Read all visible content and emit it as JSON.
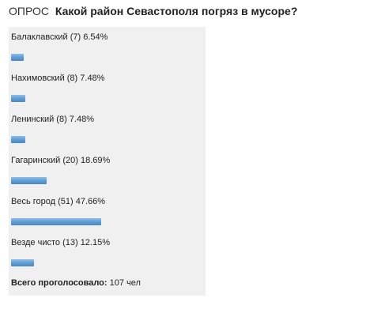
{
  "header": {
    "tag": "ОПРОС",
    "question": "Какой район Севастополя погряз в мусоре?"
  },
  "poll": {
    "accent_color": "#5c9bd2",
    "options": [
      {
        "label": "Балаклавский (7) 6.54%",
        "votes": 7,
        "percent": 6.54
      },
      {
        "label": "Нахимовский (8) 7.48%",
        "votes": 8,
        "percent": 7.48
      },
      {
        "label": "Ленинский (8) 7.48%",
        "votes": 8,
        "percent": 7.48
      },
      {
        "label": "Гагаринский (20) 18.69%",
        "votes": 20,
        "percent": 18.69
      },
      {
        "label": "Весь город (51) 47.66%",
        "votes": 51,
        "percent": 47.66
      },
      {
        "label": "Везде чисто (13) 12.15%",
        "votes": 13,
        "percent": 12.15
      }
    ],
    "total_label": "Всего проголосовало:",
    "total_value": "107 чел"
  }
}
